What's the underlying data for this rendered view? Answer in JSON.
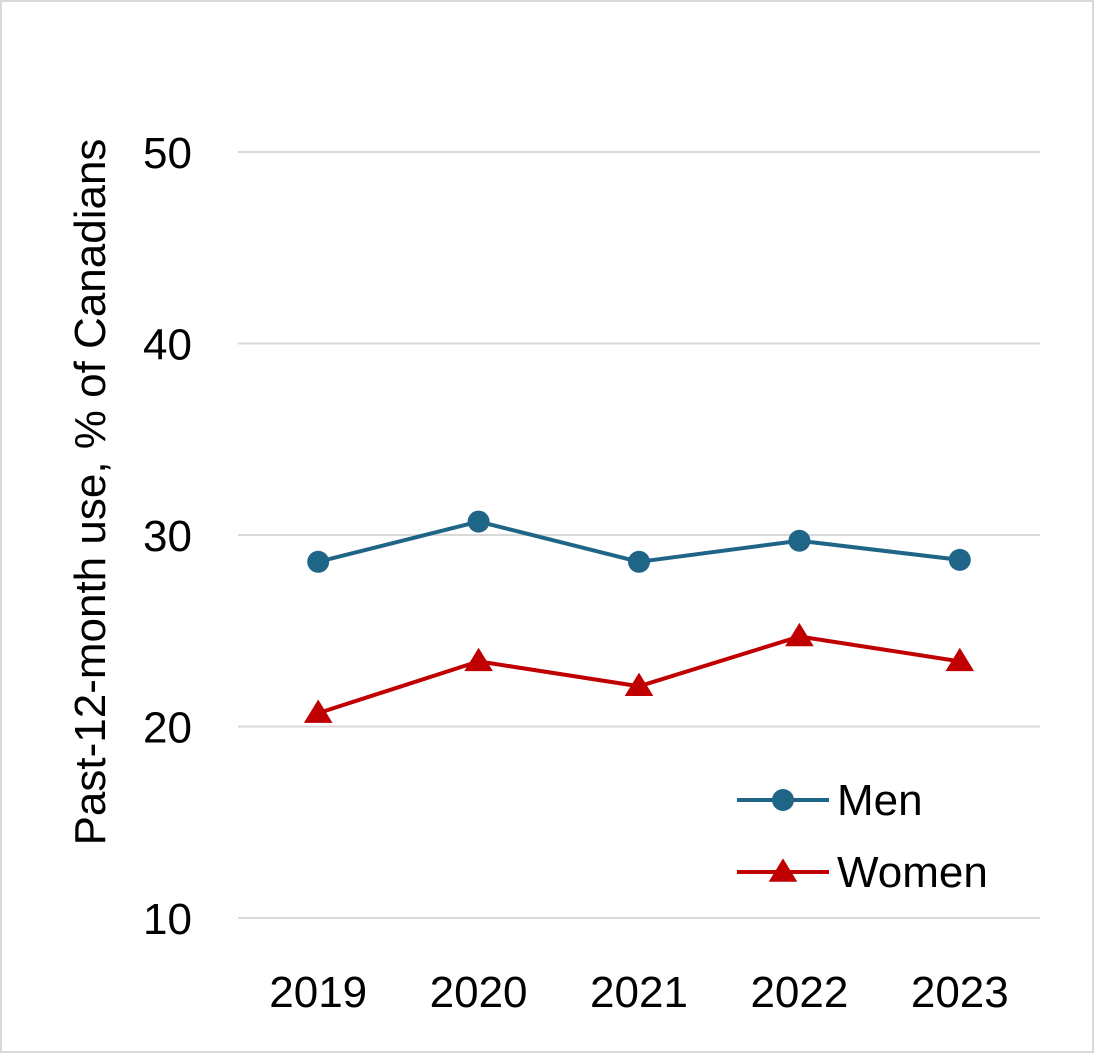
{
  "chart_data": {
    "type": "line",
    "title": "",
    "xlabel": "",
    "ylabel": "Past-12-month use, % of Canadians",
    "categories": [
      "2019",
      "2020",
      "2021",
      "2022",
      "2023"
    ],
    "ylim": [
      10,
      50
    ],
    "yticks": [
      10,
      20,
      30,
      40,
      50
    ],
    "grid": true,
    "legend_position": "bottom-right",
    "series": [
      {
        "name": "Men",
        "values": [
          28.6,
          30.7,
          28.6,
          29.7,
          28.7
        ],
        "color": "#1f6587",
        "marker": "circle"
      },
      {
        "name": "Women",
        "values": [
          20.7,
          23.4,
          22.1,
          24.7,
          23.4
        ],
        "color": "#c00000",
        "marker": "triangle"
      }
    ]
  }
}
